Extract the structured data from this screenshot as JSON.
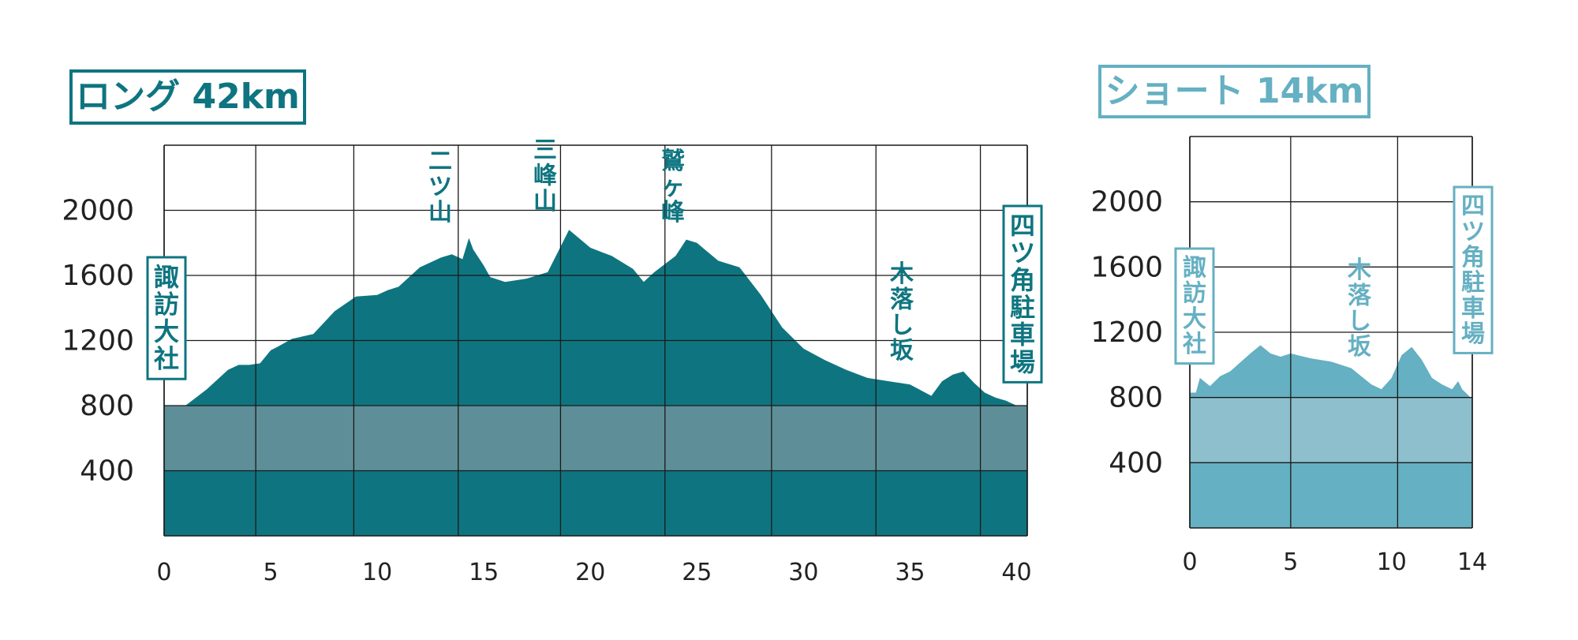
{
  "chart_data": [
    {
      "type": "area",
      "title": "ロング 42km",
      "xlabel": "",
      "ylabel": "",
      "xlim": [
        0,
        40.5
      ],
      "ylim": [
        0,
        2400
      ],
      "x_ticks": [
        "0",
        "5",
        "10",
        "15",
        "20",
        "25",
        "30",
        "35",
        "40"
      ],
      "y_ticks": [
        "400",
        "800",
        "1200",
        "1600",
        "2000"
      ],
      "grid": true,
      "colors": {
        "mountain": "#0e7580",
        "band": "#5e8f98",
        "line": "#1a1a1a"
      },
      "series": [
        {
          "x": [
            0,
            1,
            1.5,
            2,
            3,
            3.5,
            4,
            4.5,
            5,
            5.3,
            6,
            7,
            8,
            9,
            10,
            10.5,
            11,
            12,
            13,
            13.5,
            14,
            14.3,
            14.5,
            15,
            15.3,
            16,
            17,
            18,
            18.5,
            19,
            20,
            21,
            22,
            22.5,
            23,
            24,
            24.5,
            25,
            26,
            27,
            28,
            29,
            30,
            31,
            32,
            33,
            34,
            35,
            36,
            36.5,
            37,
            37.5,
            38,
            38.5,
            39,
            39.5,
            40,
            40.5
          ],
          "y": [
            800,
            800,
            850,
            900,
            1020,
            1050,
            1050,
            1060,
            1140,
            1160,
            1210,
            1240,
            1380,
            1470,
            1480,
            1510,
            1530,
            1650,
            1710,
            1730,
            1700,
            1830,
            1760,
            1660,
            1590,
            1560,
            1580,
            1620,
            1750,
            1880,
            1770,
            1720,
            1640,
            1560,
            1620,
            1720,
            1820,
            1800,
            1690,
            1650,
            1480,
            1280,
            1150,
            1080,
            1020,
            970,
            950,
            930,
            860,
            950,
            990,
            1010,
            940,
            880,
            850,
            830,
            800,
            800
          ]
        }
      ],
      "annotations": [
        "二ツ山",
        "三峰山",
        "鷲ヶ峰",
        "木落し坂"
      ],
      "start_label": "諏訪大社",
      "end_label": "四ツ角駐車場"
    },
    {
      "type": "area",
      "title": "ショート 14km",
      "xlabel": "",
      "ylabel": "",
      "xlim": [
        0,
        14
      ],
      "ylim": [
        0,
        2400
      ],
      "x_ticks": [
        "0",
        "5",
        "10",
        "14"
      ],
      "y_ticks": [
        "400",
        "800",
        "1200",
        "1600",
        "2000"
      ],
      "grid": true,
      "colors": {
        "mountain": "#65b0c2",
        "band": "#8dbfcd",
        "line": "#1a1a1a"
      },
      "series": [
        {
          "x": [
            0,
            0.3,
            0.5,
            1,
            1.5,
            2,
            3,
            3.5,
            4,
            4.5,
            5,
            6,
            7,
            8,
            9,
            9.5,
            10,
            10.5,
            11,
            11.5,
            12,
            12.5,
            13,
            13.3,
            13.5,
            14
          ],
          "y": [
            830,
            830,
            920,
            870,
            930,
            960,
            1070,
            1120,
            1070,
            1050,
            1070,
            1040,
            1020,
            980,
            880,
            850,
            920,
            1060,
            1110,
            1030,
            920,
            880,
            850,
            900,
            850,
            790
          ]
        }
      ],
      "annotations": [
        "木落し坂"
      ],
      "start_label": "諏訪大社",
      "end_label": "四ツ角駐車場"
    }
  ]
}
